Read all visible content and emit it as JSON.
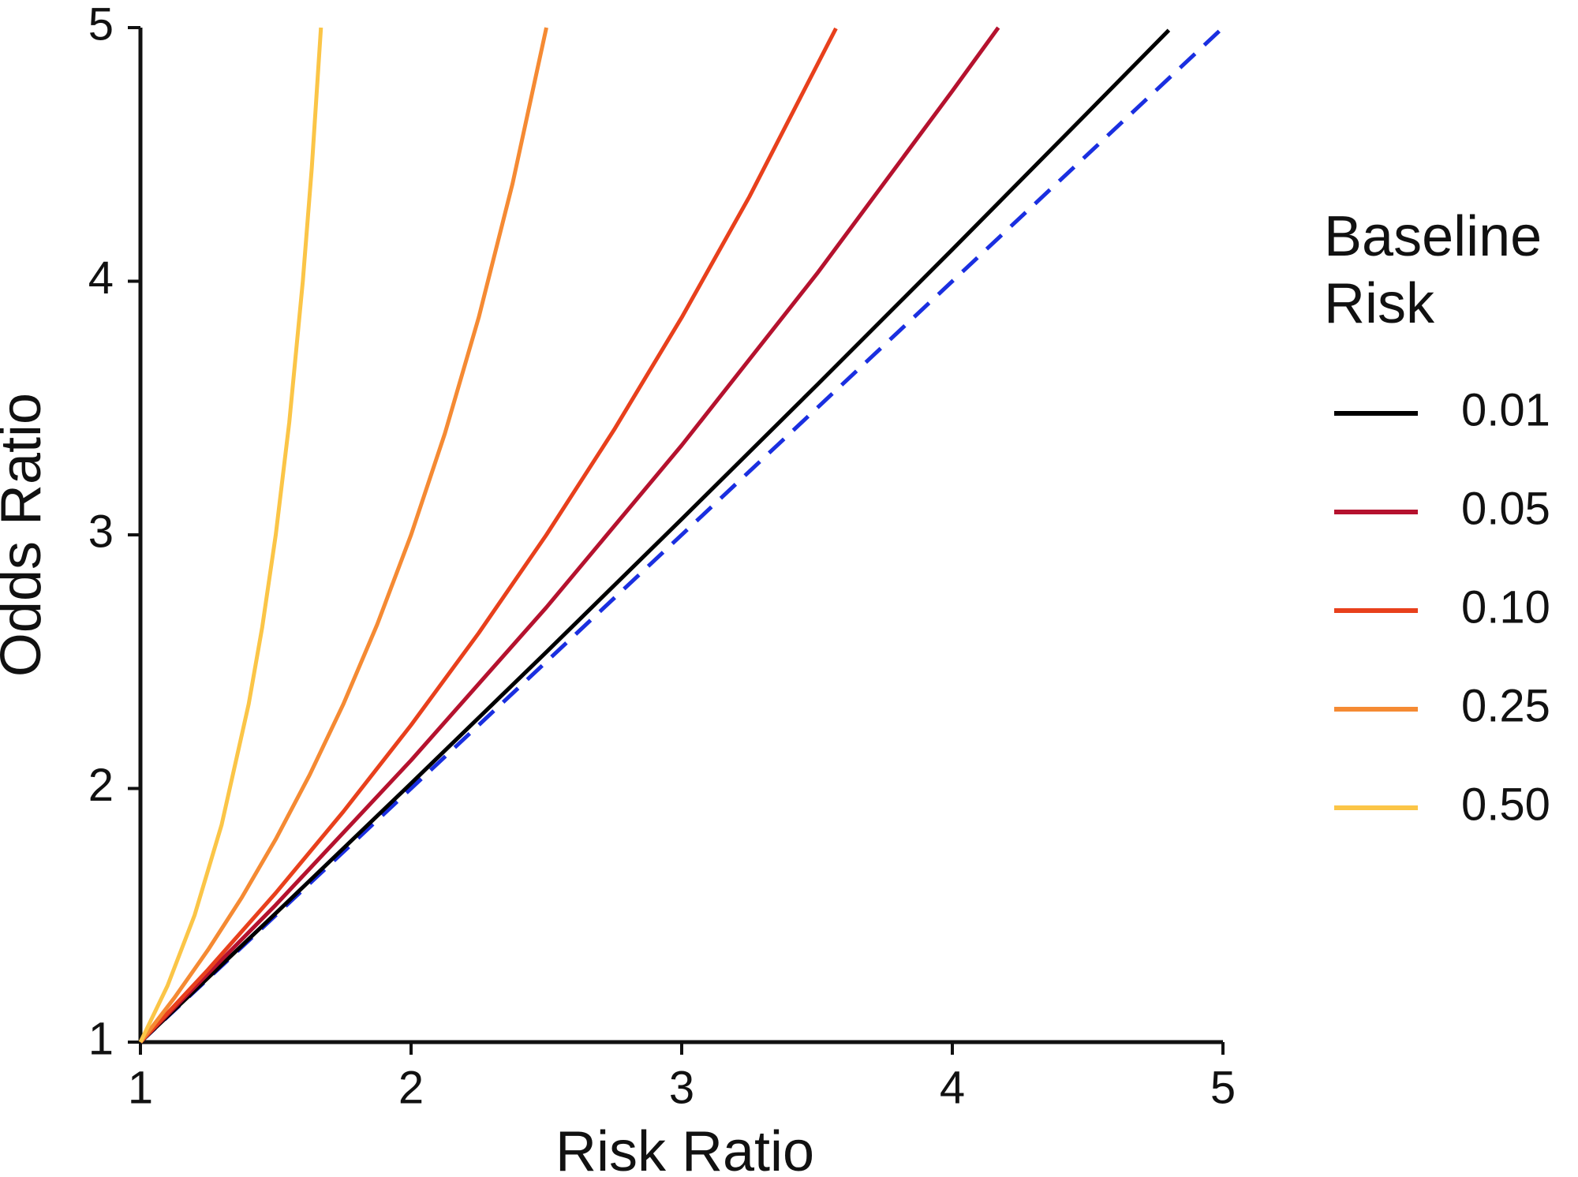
{
  "chart_data": {
    "type": "line",
    "x_label": "Risk Ratio",
    "y_label": "Odds Ratio",
    "legend_title": [
      "Baseline",
      "Risk"
    ],
    "legend": "right",
    "xlim": [
      1,
      5
    ],
    "ylim": [
      1,
      5
    ],
    "xticks": [
      1,
      2,
      3,
      4,
      5
    ],
    "yticks": [
      1,
      2,
      3,
      4,
      5
    ],
    "series": [
      {
        "name": "0.01",
        "color": "#000000",
        "x": [
          1,
          1.5,
          2,
          2.5,
          3,
          3.5,
          4,
          4.5,
          4.8
        ],
        "values": [
          1,
          1.508,
          2.02,
          2.538,
          3.062,
          3.591,
          4.125,
          4.665,
          4.99
        ]
      },
      {
        "name": "0.05",
        "color": "#b5122e",
        "x": [
          1,
          1.5,
          2,
          2.5,
          3,
          3.5,
          4,
          4.17
        ],
        "values": [
          1,
          1.541,
          2.111,
          2.714,
          3.353,
          4.03,
          4.75,
          5.0
        ]
      },
      {
        "name": "0.10",
        "color": "#e8401c",
        "x": [
          1,
          1.25,
          1.5,
          1.75,
          2,
          2.25,
          2.5,
          2.75,
          3,
          3.25,
          3.57
        ],
        "values": [
          1,
          1.286,
          1.588,
          1.909,
          2.25,
          2.613,
          3.0,
          3.414,
          3.857,
          4.333,
          4.997
        ]
      },
      {
        "name": "0.25",
        "color": "#f58a33",
        "x": [
          1,
          1.125,
          1.25,
          1.375,
          1.5,
          1.625,
          1.75,
          1.875,
          2,
          2.125,
          2.25,
          2.375,
          2.5
        ],
        "values": [
          1,
          1.174,
          1.364,
          1.571,
          1.8,
          2.053,
          2.333,
          2.647,
          3.0,
          3.4,
          3.857,
          4.385,
          5.0
        ]
      },
      {
        "name": "0.50",
        "color": "#fbc547",
        "x": [
          1,
          1.1,
          1.2,
          1.3,
          1.4,
          1.45,
          1.5,
          1.55,
          1.6,
          1.633,
          1.667
        ],
        "values": [
          1,
          1.222,
          1.5,
          1.857,
          2.333,
          2.636,
          3.0,
          3.444,
          4.0,
          4.445,
          5.0
        ]
      }
    ],
    "reference_line": {
      "color": "#1a2fe0",
      "dashed": true,
      "x": [
        1,
        5
      ],
      "values": [
        1,
        5
      ]
    }
  }
}
